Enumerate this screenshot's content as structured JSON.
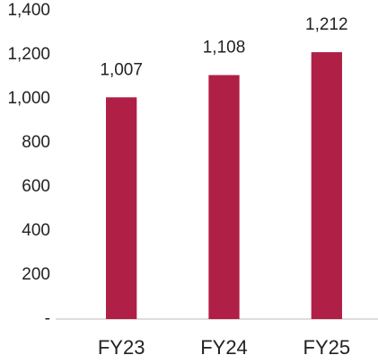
{
  "chart_data": {
    "type": "bar",
    "categories": [
      "FY23",
      "FY24",
      "FY25"
    ],
    "values": [
      1007,
      1108,
      1212
    ],
    "value_labels": [
      "1,007",
      "1,108",
      "1,212"
    ],
    "color": "#b01f45",
    "ylim": [
      0,
      1400
    ],
    "yticks": [
      {
        "value": 0,
        "label": "-"
      },
      200,
      400,
      600,
      800,
      {
        "value": 1000,
        "label": "1,000"
      },
      {
        "value": 1200,
        "label": "1,200"
      },
      {
        "value": 1400,
        "label": "1,400"
      }
    ],
    "grid": false
  }
}
